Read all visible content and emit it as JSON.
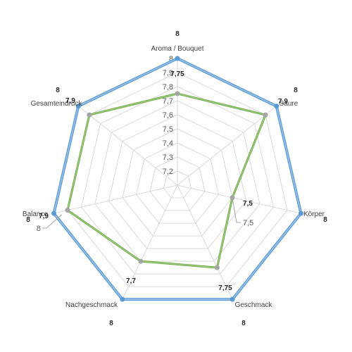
{
  "chart_data": {
    "type": "radar",
    "title": "",
    "categories": [
      "Aroma / Bouquet",
      "Säure",
      "Körper",
      "Geschmack",
      "Nachgeschmack",
      "Balance",
      "Gesamteindruck"
    ],
    "rlim": [
      7.1,
      8
    ],
    "ticks": [
      "7,2",
      "7,3",
      "7,4",
      "7,5",
      "7,6",
      "7,7",
      "7,8",
      "7,9",
      "8"
    ],
    "tick_values": [
      7.2,
      7.3,
      7.4,
      7.5,
      7.6,
      7.7,
      7.8,
      7.9,
      8.0
    ],
    "series": [
      {
        "values": [
          8,
          8,
          8,
          8,
          8,
          8,
          8
        ],
        "labels": [
          "8",
          "8",
          "8",
          "8",
          "8",
          "8",
          "8"
        ],
        "color": "#5b9bd5",
        "line_color": "#9dc3e6"
      },
      {
        "values": [
          7.75,
          7.9,
          7.5,
          7.75,
          7.7,
          7.9,
          7.9
        ],
        "labels": [
          "7,75",
          "7,9",
          "7,5",
          "7,75",
          "7,7",
          "7,9",
          "7,9"
        ],
        "color": "#70ad47",
        "marker_color": "#a5a5a5"
      }
    ],
    "callout": {
      "category_index": 2,
      "label": "7,5"
    },
    "grid": true,
    "legend": "none"
  }
}
